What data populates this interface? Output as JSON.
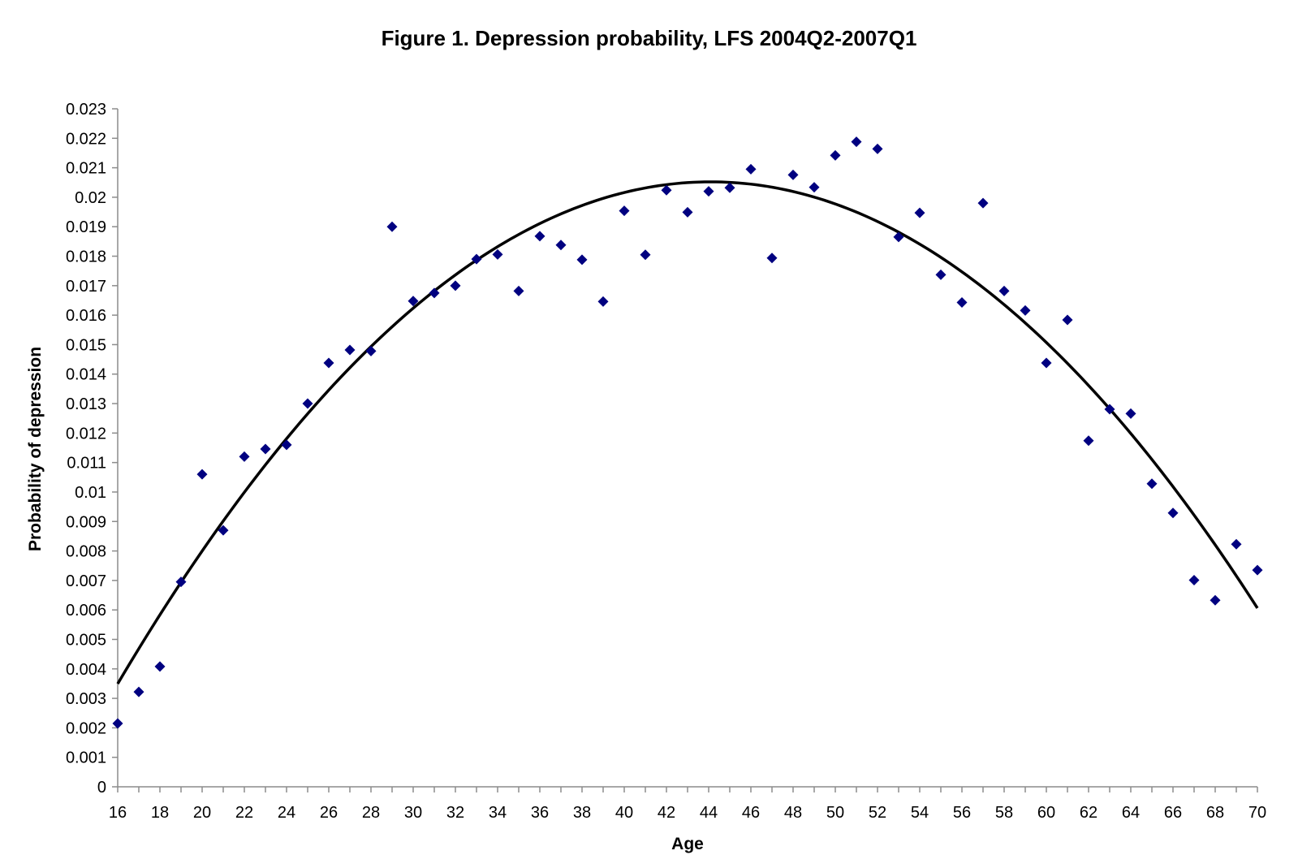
{
  "chart_data": {
    "type": "scatter",
    "title": "Figure 1. Depression probability, LFS 2004Q2-2007Q1",
    "xlabel": "Age",
    "ylabel": "Probability of depression",
    "xlim": [
      16,
      70
    ],
    "ylim": [
      0,
      0.023
    ],
    "x_ticks": [
      "16",
      "18",
      "20",
      "22",
      "24",
      "26",
      "28",
      "30",
      "32",
      "34",
      "36",
      "38",
      "40",
      "42",
      "44",
      "46",
      "48",
      "50",
      "52",
      "54",
      "56",
      "58",
      "60",
      "62",
      "64",
      "66",
      "68",
      "70"
    ],
    "y_ticks": [
      "0",
      "0.001",
      "0.002",
      "0.003",
      "0.004",
      "0.005",
      "0.006",
      "0.007",
      "0.008",
      "0.009",
      "0.01",
      "0.011",
      "0.012",
      "0.013",
      "0.014",
      "0.015",
      "0.016",
      "0.017",
      "0.018",
      "0.019",
      "0.02",
      "0.021",
      "0.022",
      "0.023"
    ],
    "grid": false,
    "legend": "none",
    "marker_color": "#000080",
    "trend_color": "#000000",
    "series": [
      {
        "marker": "diamond",
        "x": [
          16,
          17,
          18,
          19,
          20,
          21,
          22,
          23,
          24,
          25,
          26,
          27,
          28,
          29,
          30,
          31,
          32,
          33,
          34,
          35,
          36,
          37,
          38,
          39,
          40,
          41,
          42,
          43,
          44,
          45,
          46,
          47,
          48,
          49,
          50,
          51,
          52,
          53,
          54,
          55,
          56,
          57,
          58,
          59,
          60,
          61,
          62,
          63,
          64,
          65,
          66,
          67,
          68,
          69,
          70
        ],
        "y": [
          0.00215,
          0.00322,
          0.00408,
          0.00695,
          0.0106,
          0.0087,
          0.0112,
          0.01146,
          0.0116,
          0.013,
          0.01438,
          0.01482,
          0.01478,
          0.019,
          0.01648,
          0.01675,
          0.017,
          0.0179,
          0.01806,
          0.01682,
          0.01868,
          0.01838,
          0.01788,
          0.01646,
          0.01954,
          0.01805,
          0.02024,
          0.01949,
          0.0202,
          0.02032,
          0.02095,
          0.01794,
          0.02076,
          0.02034,
          0.02142,
          0.02188,
          0.02164,
          0.01865,
          0.01947,
          0.01737,
          0.01643,
          0.0198,
          0.01682,
          0.01616,
          0.01438,
          0.01584,
          0.01174,
          0.01281,
          0.01266,
          0.01028,
          0.00929,
          0.00701,
          0.00633,
          0.00823,
          0.00735
        ]
      }
    ],
    "trendline": {
      "type": "polynomial",
      "order": 2,
      "x": [
        16,
        20,
        25,
        30,
        35,
        40,
        44.5,
        50,
        55,
        60,
        65,
        70
      ],
      "y": [
        0.00337,
        0.00815,
        0.0128,
        0.01625,
        0.01855,
        0.02,
        0.02045,
        0.01985,
        0.01815,
        0.01525,
        0.0109,
        0.00605
      ]
    }
  }
}
